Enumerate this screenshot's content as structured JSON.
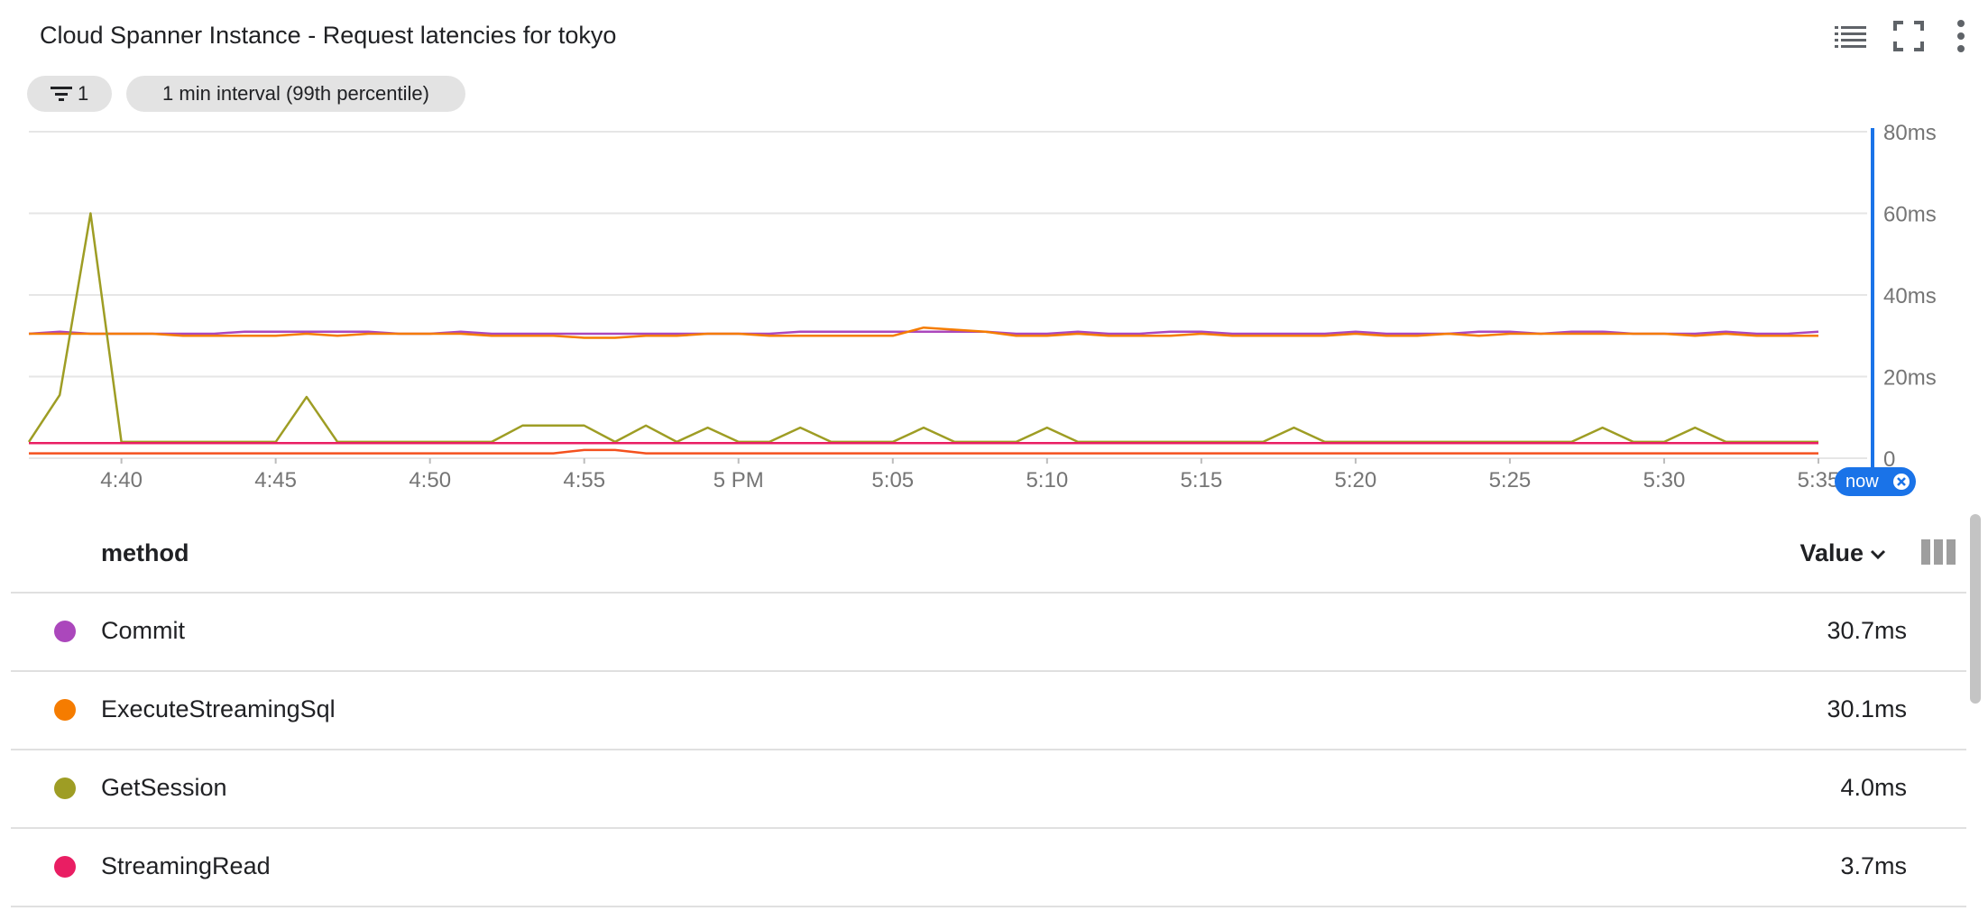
{
  "title": "Cloud Spanner Instance - Request latencies for tokyo",
  "toolbar": {
    "legend_icon": "list-icon",
    "fullscreen_icon": "fullscreen-icon",
    "more_icon": "more-vert-icon"
  },
  "chips": {
    "filter_count": "1",
    "interval": "1 min interval (99th percentile)"
  },
  "now_label": "now",
  "table": {
    "method_header": "method",
    "value_header": "Value",
    "rows": [
      {
        "name": "Commit",
        "value": "30.7ms",
        "color": "#ab47bc"
      },
      {
        "name": "ExecuteStreamingSql",
        "value": "30.1ms",
        "color": "#f57c00"
      },
      {
        "name": "GetSession",
        "value": "4.0ms",
        "color": "#9e9d24"
      },
      {
        "name": "StreamingRead",
        "value": "3.7ms",
        "color": "#e91e63"
      }
    ]
  },
  "chart_data": {
    "type": "line",
    "title": "Cloud Spanner Instance - Request latencies for tokyo",
    "xlabel": "",
    "ylabel": "",
    "x_unit": "minutes",
    "x_range": [
      "4:37",
      "5:35"
    ],
    "x_ticks": [
      {
        "t": "4:40",
        "label": "4:40"
      },
      {
        "t": "4:45",
        "label": "4:45"
      },
      {
        "t": "4:50",
        "label": "4:50"
      },
      {
        "t": "4:55",
        "label": "4:55"
      },
      {
        "t": "5:00",
        "label": "5 PM"
      },
      {
        "t": "5:05",
        "label": "5:05"
      },
      {
        "t": "5:10",
        "label": "5:10"
      },
      {
        "t": "5:15",
        "label": "5:15"
      },
      {
        "t": "5:20",
        "label": "5:20"
      },
      {
        "t": "5:25",
        "label": "5:25"
      },
      {
        "t": "5:30",
        "label": "5:30"
      },
      {
        "t": "5:35",
        "label": "5:35"
      }
    ],
    "y_ticks": [
      {
        "v": 0,
        "label": "0"
      },
      {
        "v": 20,
        "label": "20ms"
      },
      {
        "v": 40,
        "label": "40ms"
      },
      {
        "v": 60,
        "label": "60ms"
      },
      {
        "v": 80,
        "label": "80ms"
      }
    ],
    "ylim": [
      0,
      80
    ],
    "y_axis_position": "right",
    "grid": true,
    "now_marker": "5:35",
    "series": [
      {
        "name": "Commit",
        "color": "#ab47bc",
        "points": [
          [
            "4:37",
            30.5
          ],
          [
            "4:38",
            31
          ],
          [
            "4:39",
            30.5
          ],
          [
            "4:40",
            30.5
          ],
          [
            "4:41",
            30.5
          ],
          [
            "4:42",
            30.5
          ],
          [
            "4:43",
            30.5
          ],
          [
            "4:44",
            31
          ],
          [
            "4:45",
            31
          ],
          [
            "4:46",
            31
          ],
          [
            "4:47",
            31
          ],
          [
            "4:48",
            31
          ],
          [
            "4:49",
            30.5
          ],
          [
            "4:50",
            30.5
          ],
          [
            "4:51",
            31
          ],
          [
            "4:52",
            30.5
          ],
          [
            "4:53",
            30.5
          ],
          [
            "4:54",
            30.5
          ],
          [
            "4:55",
            30.5
          ],
          [
            "4:56",
            30.5
          ],
          [
            "4:57",
            30.5
          ],
          [
            "4:58",
            30.5
          ],
          [
            "4:59",
            30.5
          ],
          [
            "5:00",
            30.5
          ],
          [
            "5:01",
            30.5
          ],
          [
            "5:02",
            31
          ],
          [
            "5:03",
            31
          ],
          [
            "5:04",
            31
          ],
          [
            "5:05",
            31
          ],
          [
            "5:06",
            31
          ],
          [
            "5:07",
            31
          ],
          [
            "5:08",
            31
          ],
          [
            "5:09",
            30.5
          ],
          [
            "5:10",
            30.5
          ],
          [
            "5:11",
            31
          ],
          [
            "5:12",
            30.5
          ],
          [
            "5:13",
            30.5
          ],
          [
            "5:14",
            31
          ],
          [
            "5:15",
            31
          ],
          [
            "5:16",
            30.5
          ],
          [
            "5:17",
            30.5
          ],
          [
            "5:18",
            30.5
          ],
          [
            "5:19",
            30.5
          ],
          [
            "5:20",
            31
          ],
          [
            "5:21",
            30.5
          ],
          [
            "5:22",
            30.5
          ],
          [
            "5:23",
            30.5
          ],
          [
            "5:24",
            31
          ],
          [
            "5:25",
            31
          ],
          [
            "5:26",
            30.5
          ],
          [
            "5:27",
            31
          ],
          [
            "5:28",
            31
          ],
          [
            "5:29",
            30.5
          ],
          [
            "5:30",
            30.5
          ],
          [
            "5:31",
            30.5
          ],
          [
            "5:32",
            31
          ],
          [
            "5:33",
            30.5
          ],
          [
            "5:34",
            30.5
          ],
          [
            "5:35",
            31
          ]
        ]
      },
      {
        "name": "ExecuteStreamingSql",
        "color": "#f57c00",
        "points": [
          [
            "4:37",
            30.5
          ],
          [
            "4:38",
            30.5
          ],
          [
            "4:39",
            30.5
          ],
          [
            "4:40",
            30.5
          ],
          [
            "4:41",
            30.5
          ],
          [
            "4:42",
            30
          ],
          [
            "4:43",
            30
          ],
          [
            "4:44",
            30
          ],
          [
            "4:45",
            30
          ],
          [
            "4:46",
            30.5
          ],
          [
            "4:47",
            30
          ],
          [
            "4:48",
            30.5
          ],
          [
            "4:49",
            30.5
          ],
          [
            "4:50",
            30.5
          ],
          [
            "4:51",
            30.5
          ],
          [
            "4:52",
            30
          ],
          [
            "4:53",
            30
          ],
          [
            "4:54",
            30
          ],
          [
            "4:55",
            29.5
          ],
          [
            "4:56",
            29.5
          ],
          [
            "4:57",
            30
          ],
          [
            "4:58",
            30
          ],
          [
            "4:59",
            30.5
          ],
          [
            "5:00",
            30.5
          ],
          [
            "5:01",
            30
          ],
          [
            "5:02",
            30
          ],
          [
            "5:03",
            30
          ],
          [
            "5:04",
            30
          ],
          [
            "5:05",
            30
          ],
          [
            "5:06",
            32
          ],
          [
            "5:07",
            31.5
          ],
          [
            "5:08",
            31
          ],
          [
            "5:09",
            30
          ],
          [
            "5:10",
            30
          ],
          [
            "5:11",
            30.5
          ],
          [
            "5:12",
            30
          ],
          [
            "5:13",
            30
          ],
          [
            "5:14",
            30
          ],
          [
            "5:15",
            30.5
          ],
          [
            "5:16",
            30
          ],
          [
            "5:17",
            30
          ],
          [
            "5:18",
            30
          ],
          [
            "5:19",
            30
          ],
          [
            "5:20",
            30.5
          ],
          [
            "5:21",
            30
          ],
          [
            "5:22",
            30
          ],
          [
            "5:23",
            30.5
          ],
          [
            "5:24",
            30
          ],
          [
            "5:25",
            30.5
          ],
          [
            "5:26",
            30.5
          ],
          [
            "5:27",
            30.5
          ],
          [
            "5:28",
            30.5
          ],
          [
            "5:29",
            30.5
          ],
          [
            "5:30",
            30.5
          ],
          [
            "5:31",
            30
          ],
          [
            "5:32",
            30.5
          ],
          [
            "5:33",
            30
          ],
          [
            "5:34",
            30
          ],
          [
            "5:35",
            30
          ]
        ]
      },
      {
        "name": "GetSession",
        "color": "#9e9d24",
        "points": [
          [
            "4:37",
            4
          ],
          [
            "4:38",
            15.5
          ],
          [
            "4:39",
            60
          ],
          [
            "4:40",
            4
          ],
          [
            "4:41",
            4
          ],
          [
            "4:42",
            4
          ],
          [
            "4:43",
            4
          ],
          [
            "4:44",
            4
          ],
          [
            "4:45",
            4
          ],
          [
            "4:46",
            15
          ],
          [
            "4:47",
            4
          ],
          [
            "4:48",
            4
          ],
          [
            "4:49",
            4
          ],
          [
            "4:50",
            4
          ],
          [
            "4:51",
            4
          ],
          [
            "4:52",
            4
          ],
          [
            "4:53",
            8
          ],
          [
            "4:54",
            8
          ],
          [
            "4:55",
            8
          ],
          [
            "4:56",
            4
          ],
          [
            "4:57",
            8
          ],
          [
            "4:58",
            4
          ],
          [
            "4:59",
            7.5
          ],
          [
            "5:00",
            4
          ],
          [
            "5:01",
            4
          ],
          [
            "5:02",
            7.5
          ],
          [
            "5:03",
            4
          ],
          [
            "5:04",
            4
          ],
          [
            "5:05",
            4
          ],
          [
            "5:06",
            7.5
          ],
          [
            "5:07",
            4
          ],
          [
            "5:08",
            4
          ],
          [
            "5:09",
            4
          ],
          [
            "5:10",
            7.5
          ],
          [
            "5:11",
            4
          ],
          [
            "5:12",
            4
          ],
          [
            "5:13",
            4
          ],
          [
            "5:14",
            4
          ],
          [
            "5:15",
            4
          ],
          [
            "5:16",
            4
          ],
          [
            "5:17",
            4
          ],
          [
            "5:18",
            7.5
          ],
          [
            "5:19",
            4
          ],
          [
            "5:20",
            4
          ],
          [
            "5:21",
            4
          ],
          [
            "5:22",
            4
          ],
          [
            "5:23",
            4
          ],
          [
            "5:24",
            4
          ],
          [
            "5:25",
            4
          ],
          [
            "5:26",
            4
          ],
          [
            "5:27",
            4
          ],
          [
            "5:28",
            7.5
          ],
          [
            "5:29",
            4
          ],
          [
            "5:30",
            4
          ],
          [
            "5:31",
            7.5
          ],
          [
            "5:32",
            4
          ],
          [
            "5:33",
            4
          ],
          [
            "5:34",
            4
          ],
          [
            "5:35",
            4
          ]
        ]
      },
      {
        "name": "StreamingRead",
        "color": "#e91e63",
        "points": [
          [
            "4:37",
            3.7
          ],
          [
            "5:35",
            3.7
          ]
        ]
      },
      {
        "name": "",
        "color": "#f4511e",
        "points": [
          [
            "4:37",
            1.2
          ],
          [
            "4:54",
            1.2
          ],
          [
            "4:55",
            2
          ],
          [
            "4:56",
            2
          ],
          [
            "4:57",
            1.2
          ],
          [
            "5:35",
            1.2
          ]
        ]
      }
    ]
  }
}
